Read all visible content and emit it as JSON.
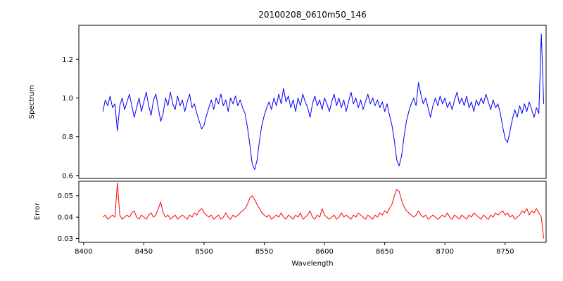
{
  "figure": {
    "background": "#ffffff"
  },
  "chart_data": {
    "type": "line",
    "title": "20100208_0610m50_146",
    "xlabel": "Wavelength",
    "xlim": [
      8396,
      8784
    ],
    "xticks": [
      8400,
      8450,
      8500,
      8550,
      8600,
      8650,
      8700,
      8750
    ],
    "xticklabels": [
      "8400",
      "8450",
      "8500",
      "8550",
      "8600",
      "8650",
      "8700",
      "8750"
    ],
    "x": [
      8416,
      8418,
      8420,
      8422,
      8424,
      8426,
      8428,
      8430,
      8432,
      8434,
      8436,
      8438,
      8440,
      8442,
      8444,
      8446,
      8448,
      8450,
      8452,
      8454,
      8456,
      8458,
      8460,
      8462,
      8464,
      8466,
      8468,
      8470,
      8472,
      8474,
      8476,
      8478,
      8480,
      8482,
      8484,
      8486,
      8488,
      8490,
      8492,
      8494,
      8496,
      8498,
      8500,
      8502,
      8504,
      8506,
      8508,
      8510,
      8512,
      8514,
      8516,
      8518,
      8520,
      8522,
      8524,
      8526,
      8528,
      8530,
      8532,
      8534,
      8536,
      8538,
      8540,
      8542,
      8544,
      8546,
      8548,
      8550,
      8552,
      8554,
      8556,
      8558,
      8560,
      8562,
      8564,
      8566,
      8568,
      8570,
      8572,
      8574,
      8576,
      8578,
      8580,
      8582,
      8584,
      8586,
      8588,
      8590,
      8592,
      8594,
      8596,
      8598,
      8600,
      8602,
      8604,
      8606,
      8608,
      8610,
      8612,
      8614,
      8616,
      8618,
      8620,
      8622,
      8624,
      8626,
      8628,
      8630,
      8632,
      8634,
      8636,
      8638,
      8640,
      8642,
      8644,
      8646,
      8648,
      8650,
      8652,
      8654,
      8656,
      8658,
      8660,
      8662,
      8664,
      8666,
      8668,
      8670,
      8672,
      8674,
      8676,
      8678,
      8680,
      8682,
      8684,
      8686,
      8688,
      8690,
      8692,
      8694,
      8696,
      8698,
      8700,
      8702,
      8704,
      8706,
      8708,
      8710,
      8712,
      8714,
      8716,
      8718,
      8720,
      8722,
      8724,
      8726,
      8728,
      8730,
      8732,
      8734,
      8736,
      8738,
      8740,
      8742,
      8744,
      8746,
      8748,
      8750,
      8752,
      8754,
      8756,
      8758,
      8760,
      8762,
      8764,
      8766,
      8768,
      8770,
      8772,
      8774,
      8776,
      8778,
      8780,
      8782
    ],
    "panels": [
      {
        "name": "spectrum-line",
        "ylabel": "Spectrum",
        "color": "#0000ff",
        "ylim": [
          0.585,
          1.375
        ],
        "yticks": [
          0.6,
          0.8,
          1.0,
          1.2
        ],
        "yticklabels": [
          "0.6",
          "0.8",
          "1.0",
          "1.2"
        ],
        "values": [
          0.93,
          0.99,
          0.96,
          1.01,
          0.95,
          0.97,
          0.83,
          0.96,
          1.0,
          0.94,
          0.98,
          1.02,
          0.96,
          0.9,
          0.95,
          1.0,
          0.93,
          0.98,
          1.03,
          0.96,
          0.91,
          0.99,
          1.02,
          0.95,
          0.88,
          0.92,
          1.0,
          0.96,
          1.03,
          0.97,
          0.94,
          1.01,
          0.96,
          0.99,
          0.93,
          0.98,
          1.02,
          0.95,
          0.97,
          0.92,
          0.88,
          0.84,
          0.86,
          0.91,
          0.95,
          0.99,
          0.94,
          1.0,
          0.97,
          1.02,
          0.96,
          0.99,
          0.93,
          1.0,
          0.97,
          1.01,
          0.96,
          0.99,
          0.95,
          0.92,
          0.85,
          0.76,
          0.66,
          0.63,
          0.68,
          0.78,
          0.86,
          0.91,
          0.95,
          0.98,
          0.94,
          1.0,
          0.96,
          1.02,
          0.97,
          1.05,
          0.98,
          1.01,
          0.95,
          0.99,
          0.93,
          1.0,
          0.96,
          1.02,
          0.98,
          0.95,
          0.9,
          0.97,
          1.01,
          0.96,
          0.99,
          0.94,
          1.0,
          0.97,
          0.93,
          0.98,
          1.02,
          0.96,
          1.0,
          0.95,
          0.99,
          0.93,
          0.98,
          1.03,
          0.97,
          1.0,
          0.95,
          0.99,
          0.94,
          0.98,
          1.02,
          0.97,
          1.0,
          0.96,
          0.99,
          0.95,
          0.98,
          0.93,
          0.97,
          0.91,
          0.86,
          0.78,
          0.68,
          0.65,
          0.7,
          0.8,
          0.88,
          0.93,
          0.97,
          1.0,
          0.96,
          1.08,
          1.02,
          0.97,
          1.0,
          0.95,
          0.9,
          0.96,
          1.0,
          0.96,
          1.01,
          0.97,
          1.0,
          0.95,
          0.98,
          0.94,
          0.99,
          1.03,
          0.97,
          1.0,
          0.96,
          1.01,
          0.95,
          0.98,
          0.93,
          0.99,
          0.96,
          1.0,
          0.97,
          1.02,
          0.98,
          0.94,
          0.99,
          0.95,
          0.97,
          0.92,
          0.85,
          0.79,
          0.77,
          0.83,
          0.89,
          0.94,
          0.9,
          0.96,
          0.92,
          0.97,
          0.93,
          0.98,
          0.94,
          0.9,
          0.95,
          0.92,
          1.33,
          0.97
        ]
      },
      {
        "name": "error-line",
        "ylabel": "Error",
        "color": "#ff0000",
        "ylim": [
          0.0282,
          0.0568
        ],
        "yticks": [
          0.03,
          0.04,
          0.05
        ],
        "yticklabels": [
          "0.03",
          "0.04",
          "0.05"
        ],
        "values": [
          0.04,
          0.041,
          0.039,
          0.04,
          0.041,
          0.04,
          0.056,
          0.041,
          0.039,
          0.04,
          0.041,
          0.04,
          0.042,
          0.043,
          0.04,
          0.039,
          0.041,
          0.04,
          0.039,
          0.041,
          0.042,
          0.04,
          0.041,
          0.044,
          0.047,
          0.042,
          0.04,
          0.041,
          0.039,
          0.04,
          0.041,
          0.039,
          0.04,
          0.041,
          0.04,
          0.039,
          0.041,
          0.04,
          0.042,
          0.041,
          0.043,
          0.044,
          0.042,
          0.041,
          0.04,
          0.041,
          0.039,
          0.04,
          0.041,
          0.039,
          0.04,
          0.042,
          0.04,
          0.039,
          0.041,
          0.04,
          0.041,
          0.042,
          0.043,
          0.044,
          0.046,
          0.049,
          0.05,
          0.048,
          0.046,
          0.044,
          0.042,
          0.041,
          0.04,
          0.041,
          0.039,
          0.04,
          0.041,
          0.04,
          0.042,
          0.04,
          0.039,
          0.041,
          0.04,
          0.039,
          0.041,
          0.04,
          0.042,
          0.039,
          0.04,
          0.041,
          0.043,
          0.04,
          0.039,
          0.041,
          0.04,
          0.044,
          0.041,
          0.04,
          0.039,
          0.04,
          0.041,
          0.039,
          0.04,
          0.042,
          0.04,
          0.041,
          0.04,
          0.039,
          0.041,
          0.04,
          0.042,
          0.041,
          0.04,
          0.039,
          0.041,
          0.04,
          0.039,
          0.041,
          0.04,
          0.042,
          0.041,
          0.043,
          0.042,
          0.044,
          0.046,
          0.05,
          0.053,
          0.052,
          0.048,
          0.045,
          0.043,
          0.042,
          0.041,
          0.04,
          0.041,
          0.043,
          0.041,
          0.04,
          0.041,
          0.039,
          0.04,
          0.041,
          0.04,
          0.039,
          0.04,
          0.041,
          0.04,
          0.042,
          0.04,
          0.039,
          0.041,
          0.04,
          0.039,
          0.041,
          0.04,
          0.039,
          0.041,
          0.04,
          0.042,
          0.041,
          0.04,
          0.039,
          0.041,
          0.04,
          0.039,
          0.041,
          0.04,
          0.042,
          0.041,
          0.042,
          0.043,
          0.041,
          0.042,
          0.04,
          0.041,
          0.039,
          0.04,
          0.041,
          0.043,
          0.042,
          0.044,
          0.041,
          0.043,
          0.042,
          0.044,
          0.042,
          0.04,
          0.03
        ]
      }
    ]
  }
}
